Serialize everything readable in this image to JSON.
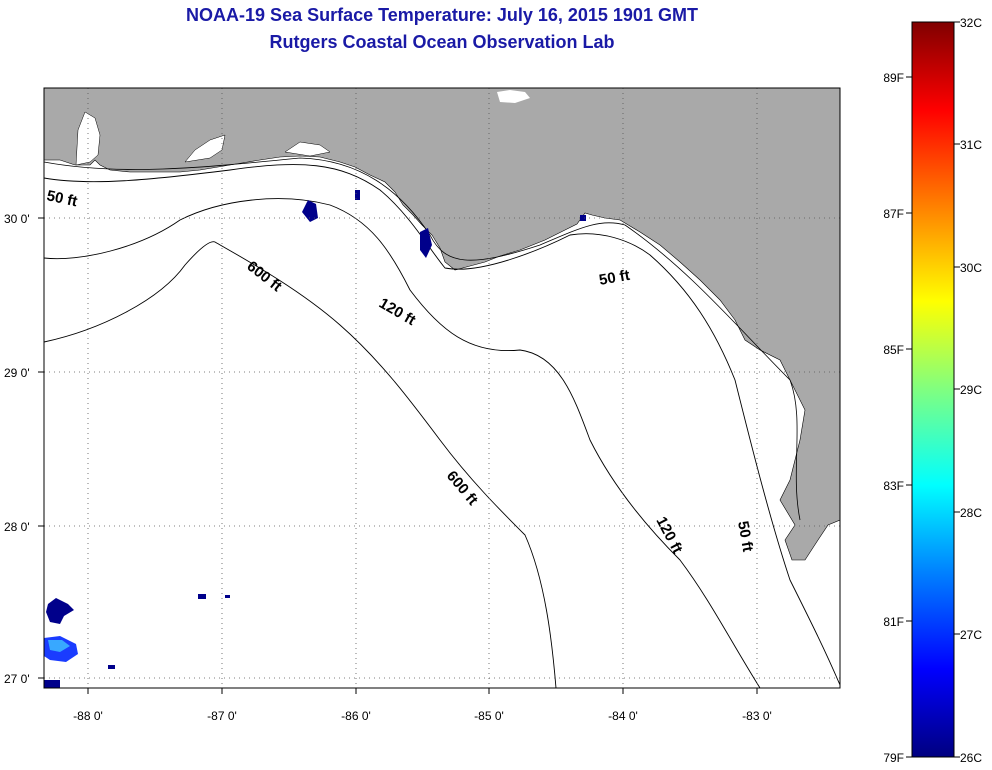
{
  "title": {
    "line1": "NOAA-19 Sea Surface Temperature:  July 16, 2015 1901 GMT",
    "line2": "Rutgers Coastal Ocean Observation Lab"
  },
  "axes": {
    "lat_labels": [
      "30 0'",
      "29 0'",
      "28 0'",
      "27 0'"
    ],
    "lon_labels": [
      "-88 0'",
      "-87 0'",
      "-86 0'",
      "-85 0'",
      "-84 0'",
      "-83 0'"
    ]
  },
  "contours": {
    "c50_labels": [
      "50 ft",
      "50 ft",
      "50 ft"
    ],
    "c120_labels": [
      "120 ft",
      "120 ft"
    ],
    "c600_labels": [
      "600 ft",
      "600 ft"
    ]
  },
  "colorbar": {
    "celsius": [
      "32C",
      "31C",
      "30C",
      "29C",
      "28C",
      "27C",
      "26C"
    ],
    "fahrenheit": [
      "89F",
      "87F",
      "85F",
      "83F",
      "81F",
      "79F"
    ],
    "colors": [
      "#000080",
      "#0000ff",
      "#0080ff",
      "#00ffff",
      "#80ff80",
      "#ffff00",
      "#ff8000",
      "#ff0000",
      "#800000"
    ]
  },
  "colors": {
    "land": "#a9a9a9",
    "title": "#1a1aa6",
    "cold_patch": "#00008b"
  }
}
